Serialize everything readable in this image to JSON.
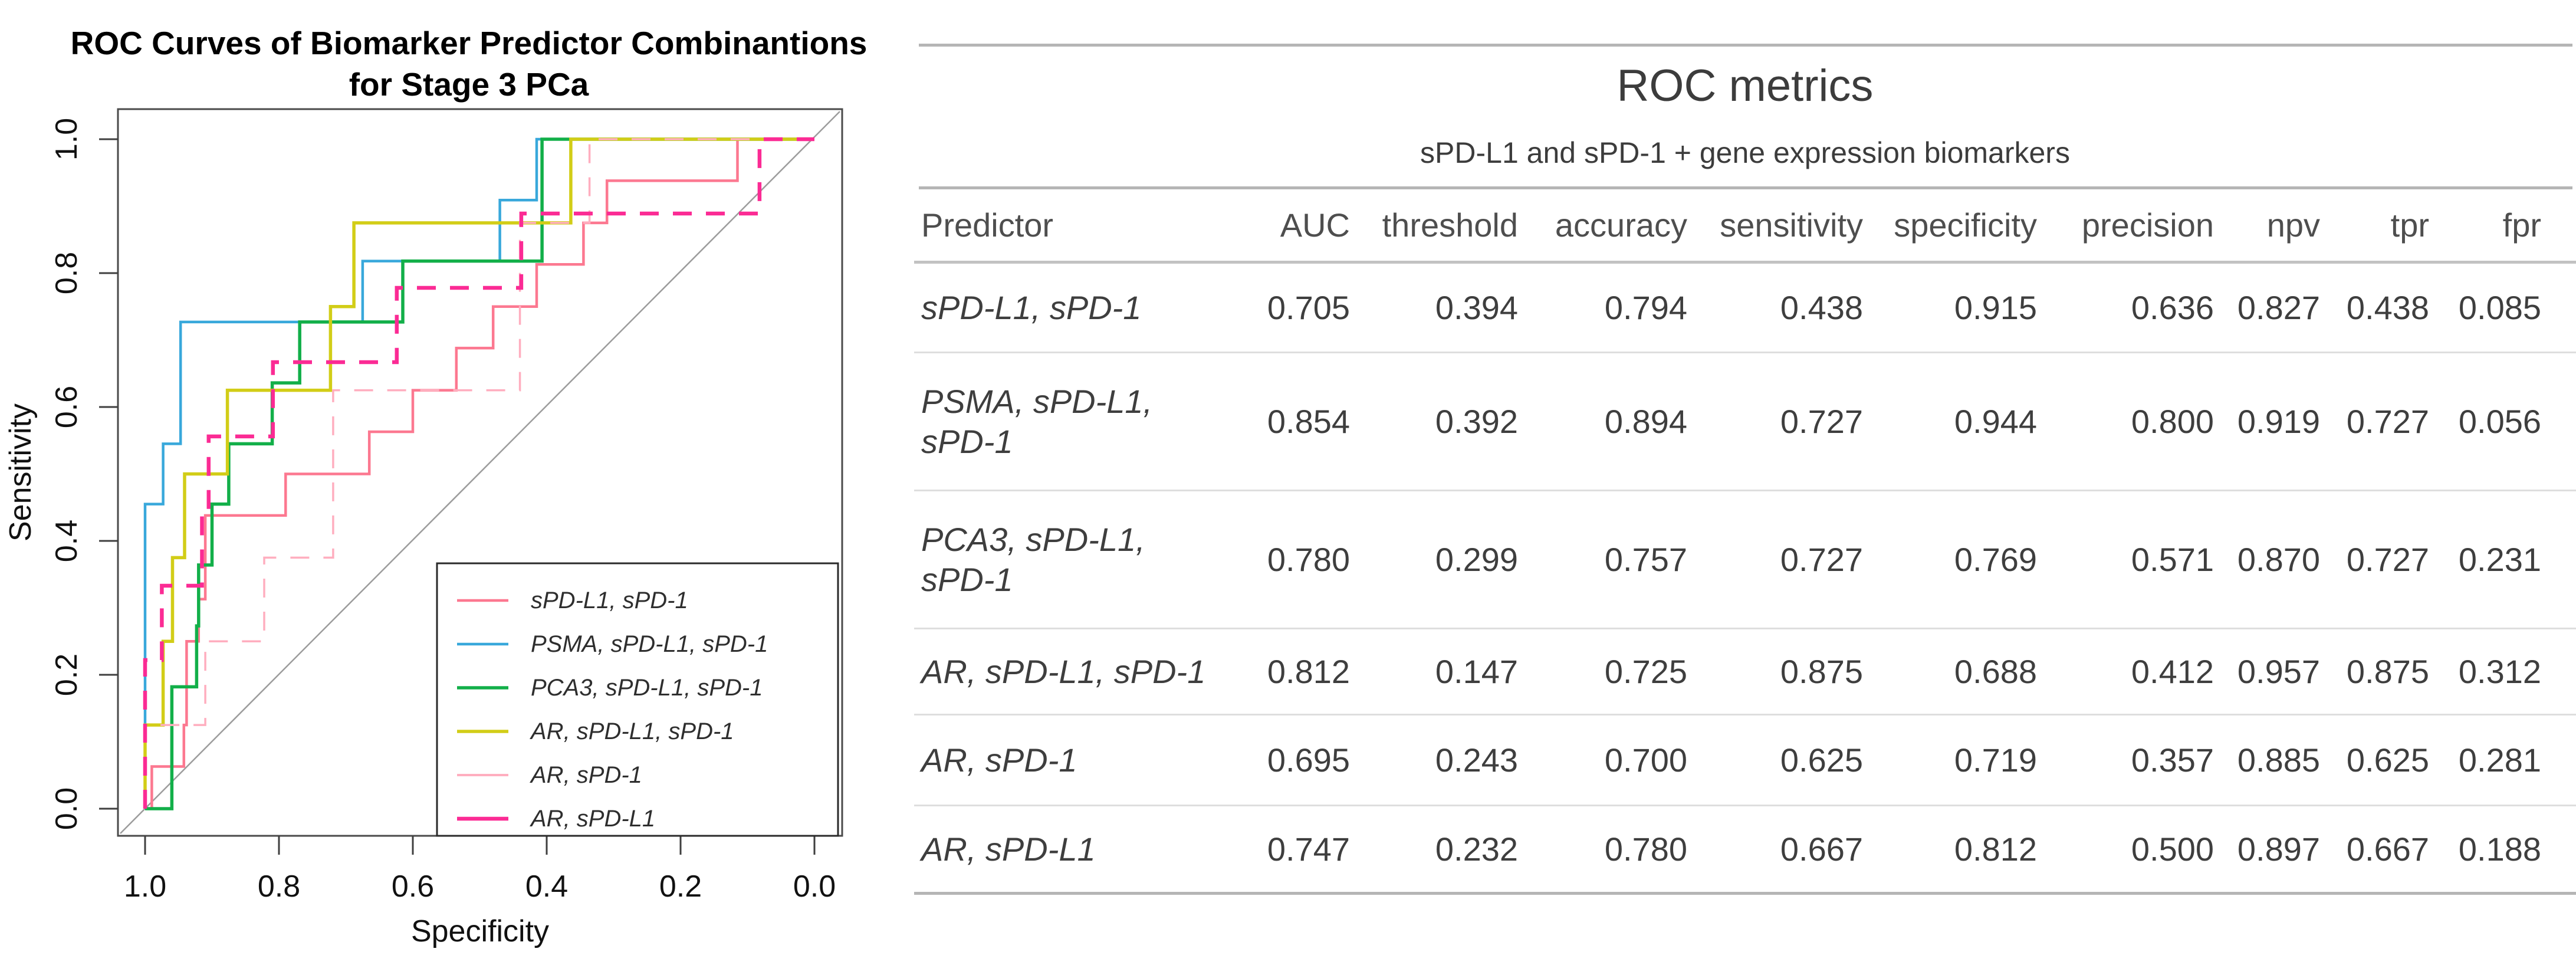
{
  "plot": {
    "title_line1": "ROC Curves of Biomarker Predictor Combinantions",
    "title_line2": "for Stage 3 PCa",
    "xlabel": "Specificity",
    "ylabel": "Sensitivity",
    "xticks": [
      "1.0",
      "0.8",
      "0.6",
      "0.4",
      "0.2",
      "0.0"
    ],
    "yticks": [
      "0.0",
      "0.2",
      "0.4",
      "0.6",
      "0.8",
      "1.0"
    ]
  },
  "chart_data": {
    "type": "line",
    "subtype": "roc-step-curves",
    "title": "ROC Curves of Biomarker Predictor Combinantions for Stage 3 PCa",
    "xlabel": "Specificity",
    "ylabel": "Sensitivity",
    "x_axis": {
      "label": "Specificity",
      "range": [
        1.0,
        0.0
      ],
      "ticks": [
        1.0,
        0.8,
        0.6,
        0.4,
        0.2,
        0.0
      ],
      "reversed": true
    },
    "y_axis": {
      "label": "Sensitivity",
      "range": [
        0.0,
        1.0
      ],
      "ticks": [
        0.0,
        0.2,
        0.4,
        0.6,
        0.8,
        1.0
      ]
    },
    "grid": false,
    "diagonal_reference_line": true,
    "legend_position": "bottom-right",
    "series": [
      {
        "name": "sPD-L1, sPD-1",
        "color": "#fc7890",
        "dash": "solid",
        "width": 4.5,
        "points_spec_sens": [
          [
            1,
            0
          ],
          [
            0.99,
            0
          ],
          [
            0.99,
            0.063
          ],
          [
            0.942,
            0.063
          ],
          [
            0.942,
            0.125
          ],
          [
            0.938,
            0.125
          ],
          [
            0.938,
            0.25
          ],
          [
            0.92,
            0.25
          ],
          [
            0.92,
            0.313
          ],
          [
            0.91,
            0.313
          ],
          [
            0.91,
            0.438
          ],
          [
            0.79,
            0.438
          ],
          [
            0.79,
            0.5
          ],
          [
            0.665,
            0.5
          ],
          [
            0.665,
            0.563
          ],
          [
            0.6,
            0.563
          ],
          [
            0.6,
            0.625
          ],
          [
            0.535,
            0.625
          ],
          [
            0.535,
            0.688
          ],
          [
            0.48,
            0.688
          ],
          [
            0.48,
            0.75
          ],
          [
            0.415,
            0.75
          ],
          [
            0.415,
            0.813
          ],
          [
            0.345,
            0.813
          ],
          [
            0.345,
            0.875
          ],
          [
            0.31,
            0.875
          ],
          [
            0.31,
            0.938
          ],
          [
            0.115,
            0.938
          ],
          [
            0.115,
            1
          ],
          [
            0,
            1
          ]
        ]
      },
      {
        "name": "PSMA, sPD-L1, sPD-1",
        "color": "#38a8db",
        "dash": "solid",
        "width": 4.5,
        "points_spec_sens": [
          [
            1,
            0
          ],
          [
            1,
            0.455
          ],
          [
            0.973,
            0.455
          ],
          [
            0.973,
            0.545
          ],
          [
            0.947,
            0.545
          ],
          [
            0.947,
            0.727
          ],
          [
            0.675,
            0.727
          ],
          [
            0.675,
            0.818
          ],
          [
            0.47,
            0.818
          ],
          [
            0.47,
            0.909
          ],
          [
            0.415,
            0.909
          ],
          [
            0.415,
            1
          ],
          [
            0,
            1
          ]
        ]
      },
      {
        "name": "PCA3, sPD-L1, sPD-1",
        "color": "#12af49",
        "dash": "solid",
        "width": 5.5,
        "points_spec_sens": [
          [
            1,
            0
          ],
          [
            0.96,
            0
          ],
          [
            0.96,
            0.182
          ],
          [
            0.923,
            0.182
          ],
          [
            0.923,
            0.273
          ],
          [
            0.92,
            0.273
          ],
          [
            0.92,
            0.364
          ],
          [
            0.9,
            0.364
          ],
          [
            0.9,
            0.455
          ],
          [
            0.875,
            0.455
          ],
          [
            0.875,
            0.545
          ],
          [
            0.81,
            0.545
          ],
          [
            0.81,
            0.636
          ],
          [
            0.769,
            0.636
          ],
          [
            0.769,
            0.727
          ],
          [
            0.615,
            0.727
          ],
          [
            0.615,
            0.818
          ],
          [
            0.407,
            0.818
          ],
          [
            0.407,
            1
          ],
          [
            0,
            1
          ]
        ]
      },
      {
        "name": "AR, sPD-L1, sPD-1",
        "color": "#d2cd17",
        "dash": "solid",
        "width": 5.5,
        "points_spec_sens": [
          [
            1,
            0
          ],
          [
            1,
            0.125
          ],
          [
            0.973,
            0.125
          ],
          [
            0.973,
            0.25
          ],
          [
            0.959,
            0.25
          ],
          [
            0.959,
            0.375
          ],
          [
            0.941,
            0.375
          ],
          [
            0.941,
            0.5
          ],
          [
            0.877,
            0.5
          ],
          [
            0.877,
            0.625
          ],
          [
            0.723,
            0.625
          ],
          [
            0.723,
            0.75
          ],
          [
            0.688,
            0.75
          ],
          [
            0.688,
            0.875
          ],
          [
            0.364,
            0.875
          ],
          [
            0.364,
            1
          ],
          [
            0,
            1
          ]
        ]
      },
      {
        "name": "AR, sPD-1",
        "color": "#ffaebf",
        "dash": "dashed",
        "width": 3.5,
        "points_spec_sens": [
          [
            1,
            0
          ],
          [
            1,
            0.125
          ],
          [
            0.91,
            0.125
          ],
          [
            0.91,
            0.25
          ],
          [
            0.822,
            0.25
          ],
          [
            0.822,
            0.375
          ],
          [
            0.719,
            0.375
          ],
          [
            0.719,
            0.625
          ],
          [
            0.44,
            0.625
          ],
          [
            0.44,
            0.875
          ],
          [
            0.336,
            0.875
          ],
          [
            0.336,
            1
          ],
          [
            0,
            1
          ]
        ]
      },
      {
        "name": "AR, sPD-L1",
        "color": "#fb2b94",
        "dash": "dashed",
        "width": 6.5,
        "points_spec_sens": [
          [
            1,
            0
          ],
          [
            1,
            0.222
          ],
          [
            0.975,
            0.222
          ],
          [
            0.975,
            0.333
          ],
          [
            0.915,
            0.333
          ],
          [
            0.915,
            0.444
          ],
          [
            0.905,
            0.444
          ],
          [
            0.905,
            0.556
          ],
          [
            0.809,
            0.556
          ],
          [
            0.809,
            0.667
          ],
          [
            0.624,
            0.667
          ],
          [
            0.624,
            0.778
          ],
          [
            0.438,
            0.778
          ],
          [
            0.438,
            0.889
          ],
          [
            0.082,
            0.889
          ],
          [
            0.082,
            1
          ],
          [
            0,
            1
          ]
        ]
      }
    ]
  },
  "table": {
    "title": "ROC metrics",
    "subtitle": "sPD-L1 and sPD-1 + gene expression biomarkers",
    "columns": [
      "Predictor",
      "AUC",
      "threshold",
      "accuracy",
      "sensitivity",
      "specificity",
      "precision",
      "npv",
      "tpr",
      "fpr"
    ],
    "rows": [
      {
        "predictor": "sPD-L1, sPD-1",
        "values": [
          "0.705",
          "0.394",
          "0.794",
          "0.438",
          "0.915",
          "0.636",
          "0.827",
          "0.438",
          "0.085"
        ]
      },
      {
        "predictor": "PSMA, sPD-L1,\nsPD-1",
        "values": [
          "0.854",
          "0.392",
          "0.894",
          "0.727",
          "0.944",
          "0.800",
          "0.919",
          "0.727",
          "0.056"
        ]
      },
      {
        "predictor": "PCA3, sPD-L1,\nsPD-1",
        "values": [
          "0.780",
          "0.299",
          "0.757",
          "0.727",
          "0.769",
          "0.571",
          "0.870",
          "0.727",
          "0.231"
        ]
      },
      {
        "predictor": "AR, sPD-L1, sPD-1",
        "values": [
          "0.812",
          "0.147",
          "0.725",
          "0.875",
          "0.688",
          "0.412",
          "0.957",
          "0.875",
          "0.312"
        ]
      },
      {
        "predictor": "AR, sPD-1",
        "values": [
          "0.695",
          "0.243",
          "0.700",
          "0.625",
          "0.719",
          "0.357",
          "0.885",
          "0.625",
          "0.281"
        ]
      },
      {
        "predictor": "AR, sPD-L1",
        "values": [
          "0.747",
          "0.232",
          "0.780",
          "0.667",
          "0.812",
          "0.500",
          "0.897",
          "0.667",
          "0.188"
        ]
      }
    ]
  },
  "colors": {
    "axis": "#3f3f3f",
    "diagonal": "#9c9c9c",
    "rule_major": "#b5b5b5",
    "rule_minor": "#dedede",
    "text": "#3e3e3e"
  }
}
